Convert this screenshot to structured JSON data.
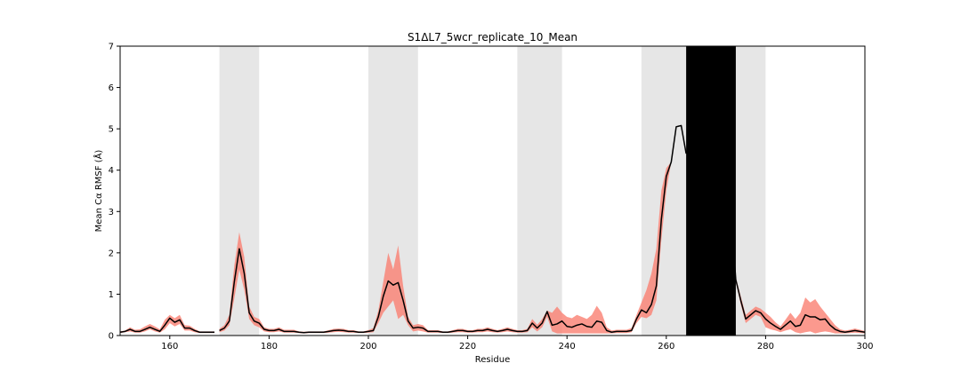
{
  "chart_data": {
    "type": "line",
    "title": "S1ΔL7_5wcr_replicate_10_Mean",
    "xlabel": "Residue",
    "ylabel": "Mean Cα RMSF (Å)",
    "xlim": [
      150,
      300
    ],
    "ylim": [
      0,
      7
    ],
    "xticks": [
      160,
      180,
      200,
      220,
      240,
      260,
      280,
      300
    ],
    "yticks": [
      0,
      1,
      2,
      3,
      4,
      5,
      6,
      7
    ],
    "grid": false,
    "colors": {
      "line": "#000000",
      "band": "#fa8072",
      "region": "#e6e6e6",
      "gap": "#000000"
    },
    "shaded_regions": [
      [
        170,
        178
      ],
      [
        200,
        210
      ],
      [
        230,
        239
      ],
      [
        255,
        280
      ]
    ],
    "gaps": [
      [
        264,
        274
      ]
    ],
    "series": [
      {
        "x": [
          150,
          151,
          152,
          153,
          154,
          155,
          156,
          157,
          158,
          159,
          160,
          161,
          162,
          163,
          164,
          165,
          166,
          167,
          168,
          169
        ],
        "y": [
          0.08,
          0.1,
          0.15,
          0.1,
          0.1,
          0.15,
          0.2,
          0.15,
          0.1,
          0.25,
          0.42,
          0.32,
          0.38,
          0.18,
          0.18,
          0.12,
          0.08,
          0.08,
          0.08,
          0.08
        ],
        "lower": [
          0.06,
          0.08,
          0.1,
          0.07,
          0.07,
          0.1,
          0.15,
          0.1,
          0.07,
          0.15,
          0.3,
          0.22,
          0.28,
          0.12,
          0.12,
          0.08,
          0.06,
          0.06,
          0.06,
          0.06
        ],
        "upper": [
          0.1,
          0.12,
          0.2,
          0.14,
          0.15,
          0.22,
          0.28,
          0.22,
          0.15,
          0.38,
          0.5,
          0.42,
          0.5,
          0.25,
          0.24,
          0.16,
          0.1,
          0.1,
          0.1,
          0.1
        ]
      },
      {
        "x": [
          170,
          171,
          172,
          173,
          174,
          175,
          176,
          177,
          178,
          179,
          180,
          181,
          182,
          183,
          184,
          185,
          186,
          187,
          188,
          189,
          190,
          191,
          192,
          193,
          194,
          195,
          196,
          197,
          198,
          199,
          200,
          201,
          202,
          203,
          204,
          205,
          206,
          207,
          208,
          209,
          210,
          211,
          212,
          213,
          214,
          215,
          216,
          217,
          218,
          219,
          220,
          221,
          222,
          223,
          224,
          225,
          226,
          227,
          228,
          229,
          230,
          231,
          232,
          233,
          234,
          235,
          236,
          237,
          238,
          239,
          240,
          241,
          242,
          243,
          244,
          245,
          246,
          247,
          248,
          249,
          250,
          251,
          252,
          253,
          254,
          255,
          256,
          257,
          258,
          259,
          260,
          261,
          262,
          263,
          264
        ],
        "y": [
          0.12,
          0.18,
          0.35,
          1.3,
          2.1,
          1.5,
          0.55,
          0.35,
          0.3,
          0.15,
          0.12,
          0.12,
          0.15,
          0.1,
          0.1,
          0.1,
          0.08,
          0.07,
          0.08,
          0.08,
          0.08,
          0.08,
          0.1,
          0.12,
          0.13,
          0.12,
          0.1,
          0.1,
          0.08,
          0.08,
          0.1,
          0.12,
          0.45,
          0.95,
          1.32,
          1.22,
          1.28,
          0.85,
          0.35,
          0.18,
          0.2,
          0.18,
          0.1,
          0.1,
          0.1,
          0.08,
          0.08,
          0.1,
          0.12,
          0.12,
          0.1,
          0.1,
          0.12,
          0.12,
          0.15,
          0.12,
          0.1,
          0.12,
          0.15,
          0.12,
          0.1,
          0.1,
          0.12,
          0.3,
          0.18,
          0.3,
          0.58,
          0.25,
          0.28,
          0.35,
          0.22,
          0.2,
          0.25,
          0.28,
          0.22,
          0.2,
          0.35,
          0.32,
          0.12,
          0.08,
          0.1,
          0.1,
          0.1,
          0.12,
          0.4,
          0.62,
          0.55,
          0.75,
          1.2,
          2.8,
          3.85,
          4.2,
          5.05,
          5.08,
          4.4
        ],
        "lower": [
          0.08,
          0.12,
          0.25,
          0.9,
          1.6,
          1.1,
          0.4,
          0.25,
          0.2,
          0.1,
          0.08,
          0.08,
          0.1,
          0.07,
          0.07,
          0.07,
          0.06,
          0.05,
          0.06,
          0.06,
          0.06,
          0.06,
          0.07,
          0.08,
          0.09,
          0.08,
          0.07,
          0.07,
          0.06,
          0.06,
          0.07,
          0.08,
          0.3,
          0.55,
          0.7,
          0.85,
          0.4,
          0.5,
          0.25,
          0.1,
          0.12,
          0.1,
          0.07,
          0.07,
          0.07,
          0.06,
          0.06,
          0.07,
          0.08,
          0.08,
          0.07,
          0.07,
          0.08,
          0.08,
          0.1,
          0.08,
          0.07,
          0.08,
          0.1,
          0.08,
          0.07,
          0.07,
          0.08,
          0.2,
          0.1,
          0.2,
          0.45,
          0.1,
          0.05,
          0.05,
          0.05,
          0.05,
          0.05,
          0.05,
          0.05,
          0.05,
          0.05,
          0.05,
          0.05,
          0.05,
          0.06,
          0.06,
          0.06,
          0.08,
          0.3,
          0.45,
          0.42,
          0.5,
          0.85,
          2.3,
          3.5,
          4.2,
          5.05,
          5.08,
          4.4
        ],
        "upper": [
          0.16,
          0.25,
          0.5,
          1.7,
          2.5,
          1.9,
          0.7,
          0.45,
          0.4,
          0.2,
          0.16,
          0.16,
          0.2,
          0.14,
          0.14,
          0.14,
          0.1,
          0.09,
          0.1,
          0.1,
          0.1,
          0.1,
          0.13,
          0.16,
          0.17,
          0.16,
          0.13,
          0.13,
          0.1,
          0.1,
          0.13,
          0.18,
          0.6,
          1.3,
          2.0,
          1.6,
          2.18,
          1.2,
          0.45,
          0.25,
          0.28,
          0.25,
          0.13,
          0.13,
          0.13,
          0.1,
          0.1,
          0.13,
          0.16,
          0.16,
          0.13,
          0.13,
          0.16,
          0.16,
          0.2,
          0.16,
          0.13,
          0.16,
          0.2,
          0.16,
          0.13,
          0.13,
          0.16,
          0.4,
          0.26,
          0.4,
          0.6,
          0.55,
          0.7,
          0.55,
          0.45,
          0.42,
          0.5,
          0.45,
          0.4,
          0.5,
          0.72,
          0.55,
          0.2,
          0.12,
          0.14,
          0.14,
          0.14,
          0.18,
          0.5,
          0.8,
          1.1,
          1.5,
          2.1,
          3.5,
          4.05,
          4.2,
          5.05,
          5.08,
          4.4
        ]
      },
      {
        "x": [
          273,
          274,
          275,
          276,
          277,
          278,
          279,
          280,
          281,
          282,
          283,
          284,
          285,
          286,
          287,
          288,
          289,
          290,
          291,
          292,
          293,
          294,
          295,
          296,
          297,
          298,
          299,
          300
        ],
        "y": [
          3.0,
          1.35,
          0.85,
          0.4,
          0.5,
          0.6,
          0.55,
          0.4,
          0.3,
          0.22,
          0.15,
          0.25,
          0.35,
          0.22,
          0.25,
          0.5,
          0.45,
          0.45,
          0.38,
          0.4,
          0.25,
          0.15,
          0.1,
          0.08,
          0.1,
          0.12,
          0.1,
          0.08
        ],
        "lower": [
          3.0,
          1.3,
          0.75,
          0.3,
          0.4,
          0.5,
          0.45,
          0.2,
          0.15,
          0.12,
          0.08,
          0.12,
          0.15,
          0.08,
          0.05,
          0.08,
          0.1,
          0.05,
          0.08,
          0.1,
          0.08,
          0.05,
          0.05,
          0.05,
          0.06,
          0.07,
          0.06,
          0.05
        ],
        "upper": [
          3.0,
          1.4,
          0.95,
          0.5,
          0.6,
          0.7,
          0.65,
          0.55,
          0.45,
          0.32,
          0.22,
          0.38,
          0.55,
          0.4,
          0.55,
          0.92,
          0.8,
          0.88,
          0.7,
          0.55,
          0.4,
          0.25,
          0.15,
          0.12,
          0.14,
          0.17,
          0.14,
          0.11
        ]
      }
    ]
  }
}
